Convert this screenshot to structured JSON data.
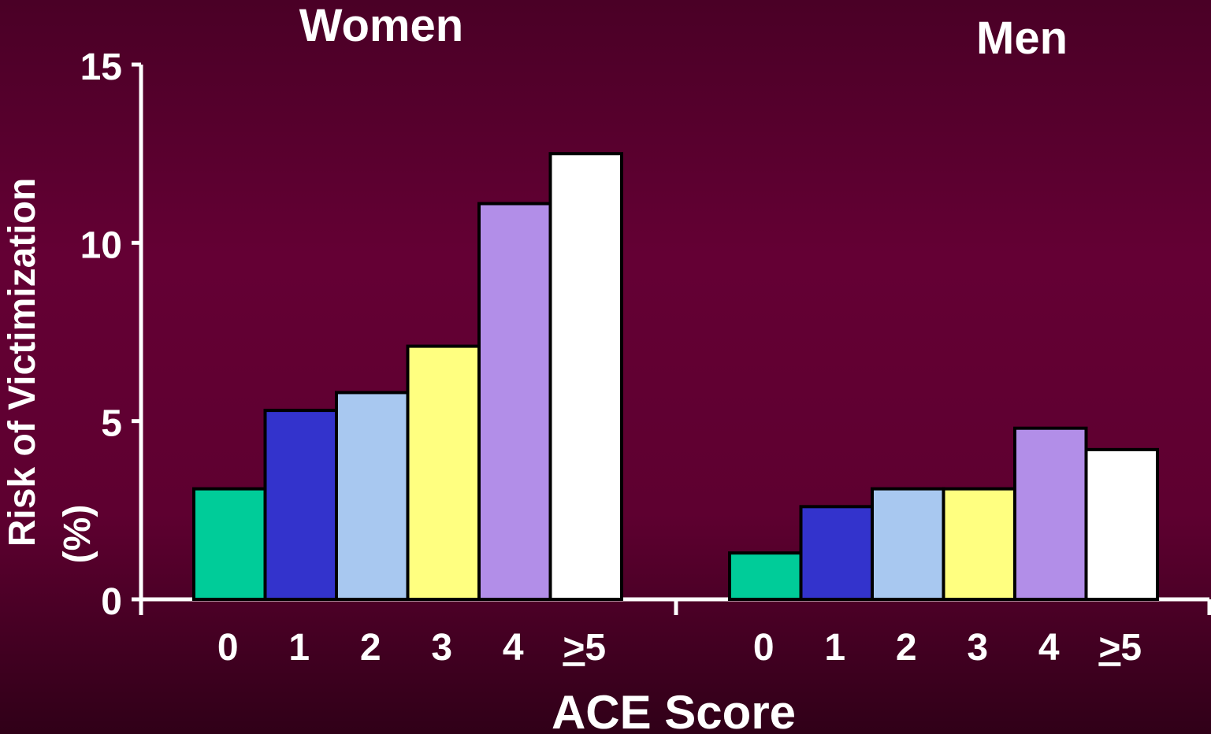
{
  "chart_data": {
    "type": "bar",
    "ylabel": "Risk of Victimization",
    "ylabel_unit": "(%)",
    "xlabel": "ACE Score",
    "ylim": [
      0,
      15
    ],
    "yticks": [
      "0",
      "5",
      "10",
      "15"
    ],
    "categories": [
      "0",
      "1",
      "2",
      "3",
      "4",
      "≥5"
    ],
    "colors": [
      "#00cc99",
      "#3333cc",
      "#a8c8f0",
      "#ffff80",
      "#b28ee8",
      "#ffffff"
    ],
    "groups": [
      {
        "name": "Women",
        "values": [
          3.1,
          5.3,
          5.8,
          7.1,
          11.1,
          12.5
        ]
      },
      {
        "name": "Men",
        "values": [
          1.3,
          2.6,
          3.1,
          3.1,
          4.8,
          4.2
        ]
      }
    ],
    "grid": false,
    "legend": "none"
  }
}
